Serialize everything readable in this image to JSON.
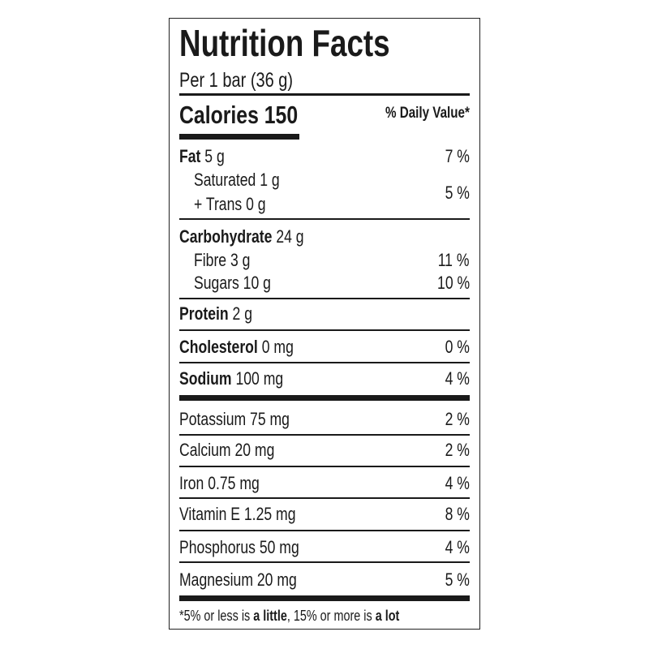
{
  "title": "Nutrition Facts",
  "serving": "Per 1 bar (36 g)",
  "calories_label": "Calories 150",
  "daily_value_header": "% Daily Value",
  "daily_value_asterisk": "*",
  "nutrients": {
    "fat": {
      "name": "Fat",
      "amount": "5 g",
      "dv": "7 %"
    },
    "saturated": {
      "name": "Saturated 1 g"
    },
    "trans": {
      "name": "+ Trans 0 g",
      "dv": "5 %"
    },
    "carbohydrate": {
      "name": "Carbohydrate",
      "amount": "24 g"
    },
    "fibre": {
      "name": "Fibre 3 g",
      "dv": "11 %"
    },
    "sugars": {
      "name": "Sugars 10 g",
      "dv": "10 %"
    },
    "protein": {
      "name": "Protein",
      "amount": "2 g"
    },
    "cholesterol": {
      "name": "Cholesterol",
      "amount": "0 mg",
      "dv": "0 %"
    },
    "sodium": {
      "name": "Sodium",
      "amount": "100 mg",
      "dv": "4 %"
    }
  },
  "minerals": [
    {
      "name": "Potassium 75 mg",
      "dv": "2 %"
    },
    {
      "name": "Calcium 20 mg",
      "dv": "2 %"
    },
    {
      "name": "Iron 0.75 mg",
      "dv": "4 %"
    },
    {
      "name": "Vitamin E 1.25 mg",
      "dv": "8 %"
    },
    {
      "name": "Phosphorus 50 mg",
      "dv": "4 %"
    },
    {
      "name": "Magnesium 20 mg",
      "dv": "5 %"
    }
  ],
  "footnote": {
    "part1": "*5% or less is ",
    "bold1": "a little",
    "part2": ", 15% or more is ",
    "bold2": "a lot"
  }
}
